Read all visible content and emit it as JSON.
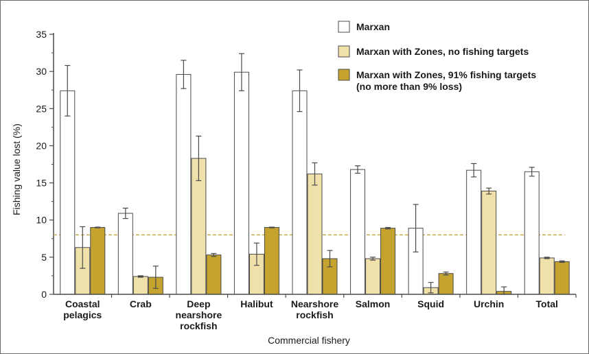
{
  "chart_data": {
    "type": "bar",
    "title": "",
    "xlabel": "Commercial fishery",
    "ylabel": "Fishing value lost (%)",
    "ylim": [
      0,
      35
    ],
    "yticks": [
      0,
      5,
      10,
      15,
      20,
      25,
      30,
      35
    ],
    "grid": false,
    "legend_position": "top-right",
    "categories": [
      [
        "Coastal",
        "pelagics"
      ],
      [
        "Crab"
      ],
      [
        "Deep",
        "nearshore",
        "rockfish"
      ],
      [
        "Halibut"
      ],
      [
        "Nearshore",
        "rockfish"
      ],
      [
        "Salmon"
      ],
      [
        "Squid"
      ],
      [
        "Urchin"
      ],
      [
        "Total"
      ]
    ],
    "series": [
      {
        "name": "Marxan",
        "color": "#ffffff",
        "values": [
          27.4,
          10.9,
          29.6,
          29.9,
          27.4,
          16.8,
          8.9,
          16.7,
          16.5
        ],
        "errors": [
          3.4,
          0.7,
          1.9,
          2.5,
          2.8,
          0.5,
          3.2,
          0.9,
          0.6
        ]
      },
      {
        "name": "Marxan with Zones, no fishing targets",
        "color": "#f0e0aa",
        "values": [
          6.3,
          2.4,
          18.3,
          5.4,
          16.2,
          4.8,
          0.9,
          13.9,
          4.9
        ],
        "errors": [
          2.8,
          0.1,
          3.0,
          1.5,
          1.5,
          0.2,
          0.7,
          0.4,
          0.1
        ]
      },
      {
        "name": [
          "Marxan with Zones, 91% fishing targets",
          "(no more than 9% loss)"
        ],
        "color": "#c5a32f",
        "values": [
          9.0,
          2.3,
          5.3,
          9.0,
          4.8,
          8.9,
          2.8,
          0.4,
          4.4
        ],
        "errors": [
          0.05,
          1.5,
          0.2,
          0.05,
          1.1,
          0.1,
          0.2,
          0.6,
          0.1
        ]
      }
    ],
    "reference_line": {
      "value": 8,
      "color": "#c5a32f",
      "style": "dashed"
    }
  }
}
